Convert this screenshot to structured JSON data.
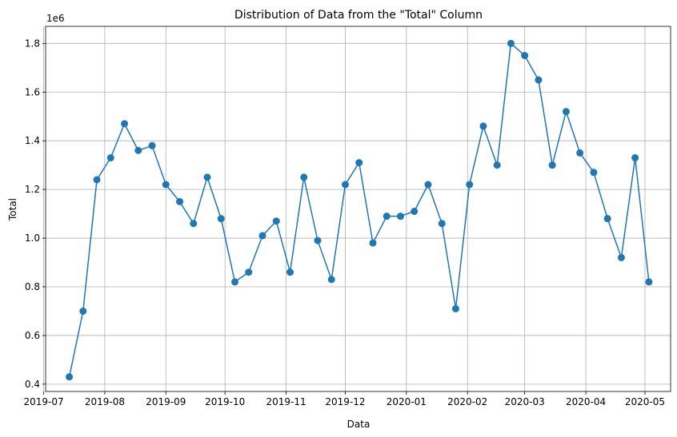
{
  "chart_data": {
    "type": "line",
    "title": "Distribution of Data from the \"Total\" Column",
    "xlabel": "Data",
    "ylabel": "Total",
    "y_offset_text": "1e6",
    "grid": true,
    "marker": "circle",
    "color": "#1f77b4",
    "xlim": [
      "2019-07-02",
      "2020-05-14"
    ],
    "ylim": [
      0.37,
      1.87
    ],
    "x_ticks": [
      "2019-07",
      "2019-08",
      "2019-09",
      "2019-10",
      "2019-11",
      "2019-12",
      "2020-01",
      "2020-02",
      "2020-03",
      "2020-04",
      "2020-05"
    ],
    "y_ticks": [
      0.4,
      0.6,
      0.8,
      1.0,
      1.2,
      1.4,
      1.6,
      1.8
    ],
    "series": [
      {
        "x": [
          "2019-07-14",
          "2019-07-21",
          "2019-07-28",
          "2019-08-04",
          "2019-08-11",
          "2019-08-18",
          "2019-08-25",
          "2019-09-01",
          "2019-09-08",
          "2019-09-15",
          "2019-09-22",
          "2019-09-29",
          "2019-10-06",
          "2019-10-13",
          "2019-10-20",
          "2019-10-27",
          "2019-11-03",
          "2019-11-10",
          "2019-11-17",
          "2019-11-24",
          "2019-12-01",
          "2019-12-08",
          "2019-12-15",
          "2019-12-22",
          "2019-12-29",
          "2020-01-05",
          "2020-01-12",
          "2020-01-19",
          "2020-01-26",
          "2020-02-02",
          "2020-02-09",
          "2020-02-16",
          "2020-02-23",
          "2020-03-01",
          "2020-03-08",
          "2020-03-15",
          "2020-03-22",
          "2020-03-29",
          "2020-04-05",
          "2020-04-12",
          "2020-04-19",
          "2020-04-26",
          "2020-05-03"
        ],
        "values": [
          0.43,
          0.7,
          1.24,
          1.33,
          1.47,
          1.36,
          1.38,
          1.22,
          1.15,
          1.06,
          1.25,
          1.08,
          0.82,
          0.86,
          1.01,
          1.07,
          0.86,
          1.25,
          0.99,
          0.83,
          1.22,
          1.31,
          0.98,
          1.09,
          1.09,
          1.11,
          1.22,
          1.06,
          0.71,
          1.22,
          1.46,
          1.3,
          1.8,
          1.75,
          1.65,
          1.3,
          1.52,
          1.35,
          1.27,
          1.08,
          0.92,
          1.33,
          0.82
        ]
      }
    ]
  }
}
